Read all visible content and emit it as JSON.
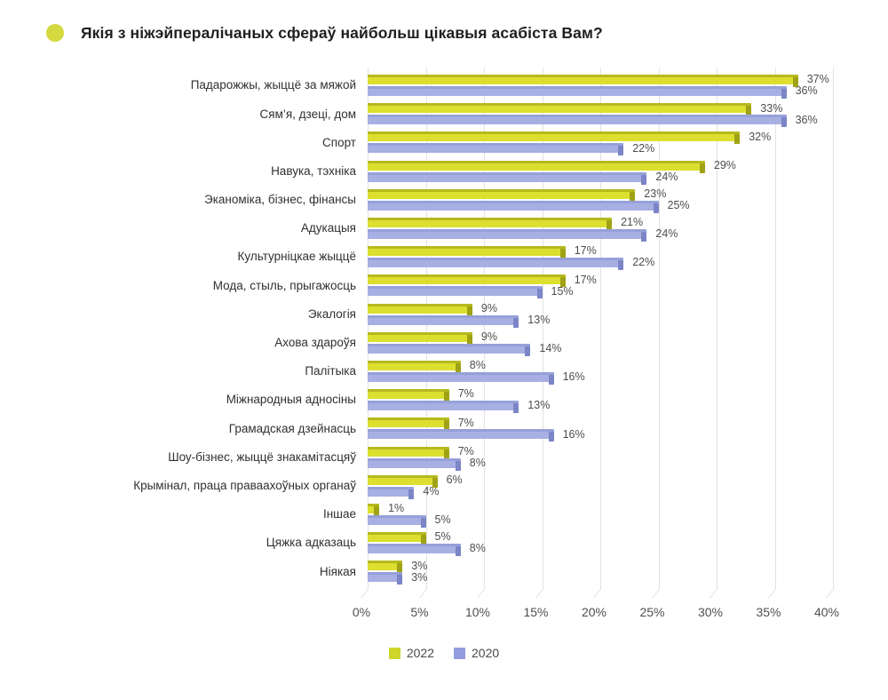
{
  "title": {
    "text": "Якія з ніжэйпералічаных сфераў найбольш цікавыя асабіста Вам?",
    "bullet_color": "#d3d93e"
  },
  "colors": {
    "yellow_main": "#dcdf2f",
    "yellow_top": "#b6b91d",
    "yellow_cap": "#9fa214",
    "purple_main": "#a7afe3",
    "purple_top": "#96a0d9",
    "purple_cap": "#7b85c7",
    "gridline": "#e2e2e2",
    "value_text": "#4d4d4d"
  },
  "legend": {
    "items": [
      {
        "label": "2022",
        "color": "#cfd62b"
      },
      {
        "label": "2020",
        "color": "#929cde"
      }
    ]
  },
  "chart_data": {
    "type": "bar",
    "orientation": "horizontal",
    "title": "Якія з ніжэйпералічаных сфераў найбольш цікавыя асабіста Вам?",
    "categories": [
      "Падарожжы, жыццё за мяжой",
      "Сям’я, дзеці, дом",
      "Спорт",
      "Навука, тэхніка",
      "Эканоміка, бізнес, фінансы",
      "Адукацыя",
      "Культурніцкае жыццё",
      "Мода, стыль, прыгажосць",
      "Экалогія",
      "Ахова здароўя",
      "Палітыка",
      "Міжнародныя адносіны",
      "Грамадская дзейнасць",
      "Шоу-бізнес, жыццё знакамітасцяў",
      "Крымінал, праца праваахоўных органаў",
      "Іншае",
      "Цяжка адказаць",
      "Ніякая"
    ],
    "series": [
      {
        "name": "2022",
        "values": [
          37,
          33,
          32,
          29,
          23,
          21,
          17,
          17,
          9,
          9,
          8,
          7,
          7,
          7,
          6,
          1,
          5,
          3
        ]
      },
      {
        "name": "2020",
        "values": [
          36,
          36,
          22,
          24,
          25,
          24,
          22,
          15,
          13,
          14,
          16,
          13,
          16,
          8,
          4,
          5,
          8,
          3
        ]
      }
    ],
    "value_suffix": "%",
    "xticklabels": [
      "0%",
      "5%",
      "10%",
      "15%",
      "20%",
      "25%",
      "30%",
      "35%",
      "40%"
    ],
    "xlim": [
      0,
      40
    ],
    "grid": true,
    "legend_position": "bottom"
  }
}
